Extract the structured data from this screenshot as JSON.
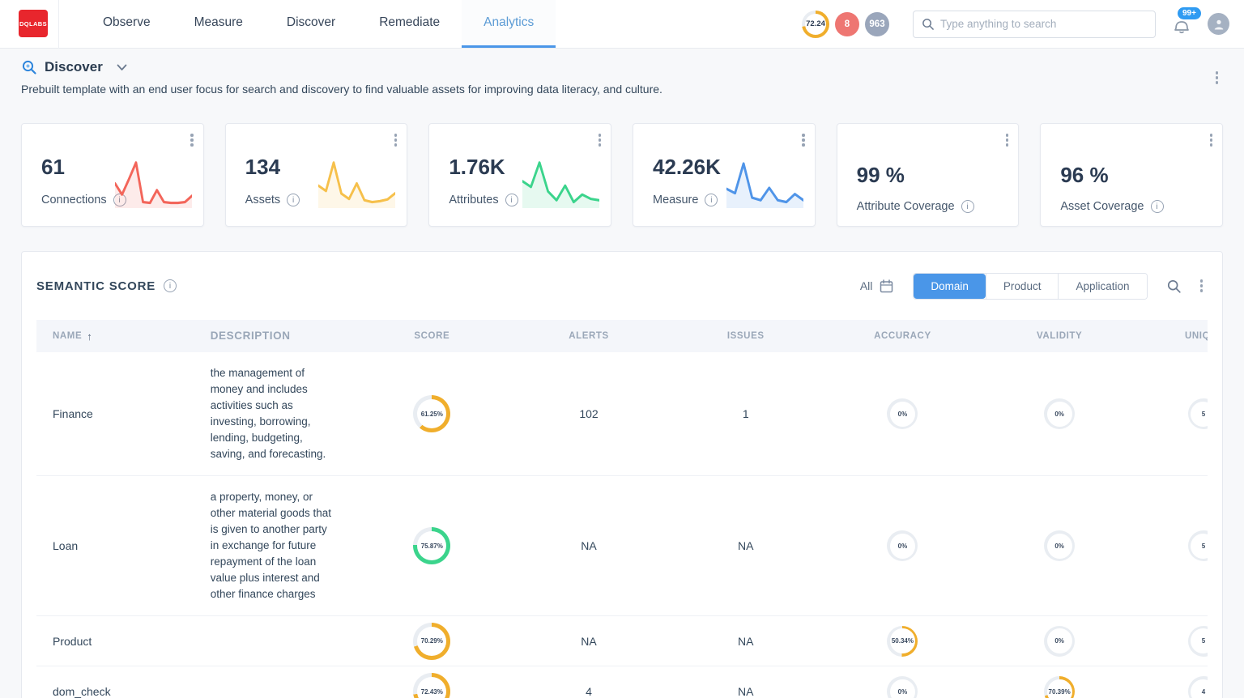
{
  "nav": {
    "logo_text": "DQLABS",
    "items": [
      {
        "label": "Observe"
      },
      {
        "label": "Measure"
      },
      {
        "label": "Discover"
      },
      {
        "label": "Remediate"
      },
      {
        "label": "Analytics"
      }
    ],
    "score_badge": {
      "label": "72.24",
      "value": 72.24,
      "color": "#f0ae2c"
    },
    "alert_badge": "8",
    "count_badge": "963",
    "search_placeholder": "Type anything to search",
    "notification_count": "99+"
  },
  "page": {
    "title": "Discover",
    "description": "Prebuilt template with an end user focus for search and discovery to find valuable assets for improving data literacy, and culture."
  },
  "cards": [
    {
      "value": "61",
      "label": "Connections",
      "sparkline": {
        "color": "#f3655a",
        "points": [
          50,
          25,
          60,
          97,
          8,
          6,
          35,
          8,
          6,
          6,
          8,
          22
        ]
      }
    },
    {
      "value": "134",
      "label": "Assets",
      "sparkline": {
        "color": "#f6c04b",
        "points": [
          45,
          33,
          97,
          27,
          15,
          50,
          12,
          8,
          10,
          14,
          28
        ]
      }
    },
    {
      "value": "1.76K",
      "label": "Attributes",
      "sparkline": {
        "color": "#3bd48c",
        "points": [
          55,
          42,
          97,
          32,
          12,
          45,
          8,
          25,
          15,
          12
        ]
      }
    },
    {
      "value": "42.26K",
      "label": "Measure",
      "sparkline": {
        "color": "#4f94e8",
        "points": [
          38,
          28,
          95,
          18,
          12,
          40,
          12,
          8,
          26,
          12
        ]
      }
    },
    {
      "value": "99 %",
      "label": "Attribute Coverage"
    },
    {
      "value": "96 %",
      "label": "Asset Coverage"
    }
  ],
  "panel": {
    "title": "SEMANTIC SCORE",
    "filter_all": "All",
    "tabs": [
      {
        "label": "Domain",
        "active": true
      },
      {
        "label": "Product",
        "active": false
      },
      {
        "label": "Application",
        "active": false
      }
    ],
    "columns": {
      "name": "NAME",
      "description": "DESCRIPTION",
      "score": "SCORE",
      "alerts": "ALERTS",
      "issues": "ISSUES",
      "accuracy": "ACCURACY",
      "validity": "VALIDITY",
      "uniqueness": "UNIQUENESS"
    },
    "rows": [
      {
        "name": "Finance",
        "description": "the management of money and includes activities such as investing, borrowing, lending, budgeting, saving, and forecasting.",
        "score": {
          "label": "61.25%",
          "value": 61.25,
          "color": "#f0ae2c"
        },
        "alerts": "102",
        "issues": "1",
        "accuracy": {
          "label": "0%",
          "value": 0
        },
        "validity": {
          "label": "0%",
          "value": 0
        },
        "uniqueness": {
          "label": "5",
          "value": 0
        }
      },
      {
        "name": "Loan",
        "description": "a property, money, or other material goods that is given to another party in exchange for future repayment of the loan value plus interest and other finance charges",
        "score": {
          "label": "75.87%",
          "value": 75.87,
          "color": "#3bd48c"
        },
        "alerts": "NA",
        "issues": "NA",
        "accuracy": {
          "label": "0%",
          "value": 0
        },
        "validity": {
          "label": "0%",
          "value": 0
        },
        "uniqueness": {
          "label": "5",
          "value": 0
        }
      },
      {
        "name": "Product",
        "description": "",
        "score": {
          "label": "70.29%",
          "value": 70.29,
          "color": "#f0ae2c"
        },
        "alerts": "NA",
        "issues": "NA",
        "accuracy": {
          "label": "50.34%",
          "value": 50.34,
          "color": "#f0ae2c"
        },
        "validity": {
          "label": "0%",
          "value": 0
        },
        "uniqueness": {
          "label": "5",
          "value": 0
        }
      },
      {
        "name": "dom_check",
        "description": "",
        "score": {
          "label": "72.43%",
          "value": 72.43,
          "color": "#f0ae2c"
        },
        "alerts": "4",
        "issues": "NA",
        "accuracy": {
          "label": "0%",
          "value": 0
        },
        "validity": {
          "label": "70.39%",
          "value": 70.39,
          "color": "#f0ae2c"
        },
        "uniqueness": {
          "label": "4",
          "value": 0
        }
      }
    ]
  },
  "colors": {
    "accent_blue": "#4a96e8",
    "yellow": "#f0ae2c",
    "green": "#3bd48c",
    "red": "#f3655a",
    "donut_track": "#e9edf2",
    "logo_red": "#e8262d"
  }
}
